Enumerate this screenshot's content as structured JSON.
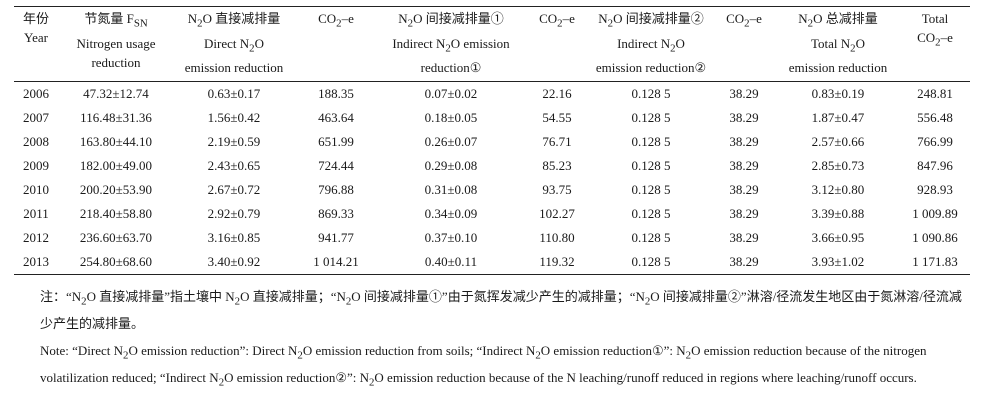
{
  "table": {
    "headers": [
      [
        "年份",
        "Year"
      ],
      [
        "节氮量 F<sub>SN</sub>",
        "Nitrogen usage",
        "reduction"
      ],
      [
        "N<sub>2</sub>O 直接减排量",
        "Direct N<sub>2</sub>O",
        "emission reduction"
      ],
      [
        "CO<sub>2</sub>–e"
      ],
      [
        "N<sub>2</sub>O 间接减排量①",
        "Indirect N<sub>2</sub>O emission",
        "reduction①"
      ],
      [
        "CO<sub>2</sub>–e"
      ],
      [
        "N<sub>2</sub>O 间接减排量②",
        "Indirect N<sub>2</sub>O",
        "emission reduction②"
      ],
      [
        "CO<sub>2</sub>–e"
      ],
      [
        "N<sub>2</sub>O 总减排量",
        "Total N<sub>2</sub>O",
        "emission reduction"
      ],
      [
        "Total",
        "CO<sub>2</sub>–e"
      ]
    ],
    "rows": [
      [
        "2006",
        "47.32±12.74",
        "0.63±0.17",
        "188.35",
        "0.07±0.02",
        "22.16",
        "0.128 5",
        "38.29",
        "0.83±0.19",
        "248.81"
      ],
      [
        "2007",
        "116.48±31.36",
        "1.56±0.42",
        "463.64",
        "0.18±0.05",
        "54.55",
        "0.128 5",
        "38.29",
        "1.87±0.47",
        "556.48"
      ],
      [
        "2008",
        "163.80±44.10",
        "2.19±0.59",
        "651.99",
        "0.26±0.07",
        "76.71",
        "0.128 5",
        "38.29",
        "2.57±0.66",
        "766.99"
      ],
      [
        "2009",
        "182.00±49.00",
        "2.43±0.65",
        "724.44",
        "0.29±0.08",
        "85.23",
        "0.128 5",
        "38.29",
        "2.85±0.73",
        "847.96"
      ],
      [
        "2010",
        "200.20±53.90",
        "2.67±0.72",
        "796.88",
        "0.31±0.08",
        "93.75",
        "0.128 5",
        "38.29",
        "3.12±0.80",
        "928.93"
      ],
      [
        "2011",
        "218.40±58.80",
        "2.92±0.79",
        "869.33",
        "0.34±0.09",
        "102.27",
        "0.128 5",
        "38.29",
        "3.39±0.88",
        "1 009.89"
      ],
      [
        "2012",
        "236.60±63.70",
        "3.16±0.85",
        "941.77",
        "0.37±0.10",
        "110.80",
        "0.128 5",
        "38.29",
        "3.66±0.95",
        "1 090.86"
      ],
      [
        "2013",
        "254.80±68.60",
        "3.40±0.92",
        "1 014.21",
        "0.40±0.11",
        "119.32",
        "0.128 5",
        "38.29",
        "3.93±1.02",
        "1 171.83"
      ]
    ]
  },
  "notes": {
    "cn_html": "注：“N<sub>2</sub>O 直接减排量”指土壤中 N<sub>2</sub>O 直接减排量；“N<sub>2</sub>O 间接减排量①”由于氮挥发减少产生的减排量；“N<sub>2</sub>O 间接减排量②”淋溶/径流发生地区由于氮淋溶/径流减少产生的减排量。",
    "en_html": "Note: “Direct N<sub>2</sub>O emission reduction”: Direct N<sub>2</sub>O emission reduction from soils; “Indirect N<sub>2</sub>O emission reduction①”: N<sub>2</sub>O emission reduction because of the nitrogen volatilization reduced; “Indirect N<sub>2</sub>O emission reduction②”: N<sub>2</sub>O emission reduction because of the N leaching/runoff reduced in regions where leaching/runoff occurs."
  }
}
